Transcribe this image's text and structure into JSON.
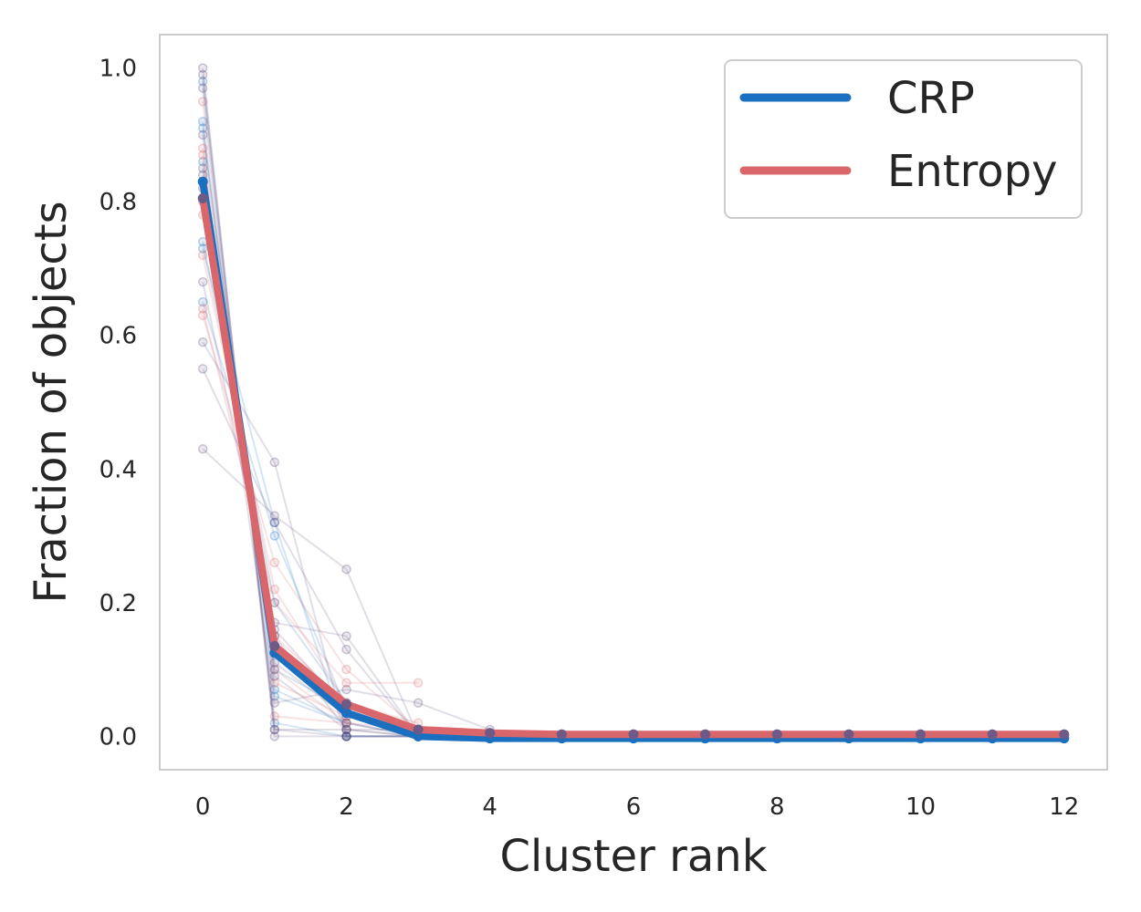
{
  "chart_data": {
    "type": "line",
    "title": "",
    "xlabel": "Cluster rank",
    "ylabel": "Fraction of objects",
    "xlim": [
      -0.6,
      12.6
    ],
    "ylim": [
      -0.05,
      1.05
    ],
    "xticks": [
      0,
      2,
      4,
      6,
      8,
      10,
      12
    ],
    "yticks": [
      0.0,
      0.2,
      0.4,
      0.6,
      0.8,
      1.0
    ],
    "xtick_labels": [
      "0",
      "2",
      "4",
      "6",
      "8",
      "10",
      "12"
    ],
    "ytick_labels": [
      "0.0",
      "0.2",
      "0.4",
      "0.6",
      "0.8",
      "1.0"
    ],
    "grid": false,
    "legend_position": "top-right",
    "x": [
      0,
      1,
      2,
      3,
      4,
      5,
      6,
      7,
      8,
      9,
      10,
      11,
      12
    ],
    "series": [
      {
        "name": "CRP",
        "color": "#1a6fbf",
        "values": [
          0.83,
          0.125,
          0.035,
          0.0,
          -0.003,
          -0.003,
          -0.003,
          -0.003,
          -0.003,
          -0.003,
          -0.003,
          -0.003,
          -0.003
        ]
      },
      {
        "name": "Entropy",
        "color": "#d9666a",
        "values": [
          0.805,
          0.135,
          0.048,
          0.01,
          0.005,
          0.003,
          0.003,
          0.003,
          0.003,
          0.003,
          0.003,
          0.003,
          0.003
        ]
      }
    ],
    "individual_runs": [
      {
        "color": "#1a6fbf",
        "values": [
          0.92,
          0.06,
          0.02,
          0.0
        ]
      },
      {
        "color": "#1a6fbf",
        "values": [
          0.74,
          0.2,
          0.05,
          0.01
        ]
      },
      {
        "color": "#1a6fbf",
        "values": [
          0.65,
          0.3,
          0.04,
          0.01
        ]
      },
      {
        "color": "#1a6fbf",
        "values": [
          0.98,
          0.02,
          0.0,
          0.0
        ]
      },
      {
        "color": "#1a6fbf",
        "values": [
          0.86,
          0.1,
          0.04,
          0.0
        ]
      },
      {
        "color": "#1a6fbf",
        "values": [
          0.73,
          0.32,
          0.0,
          0.0
        ]
      },
      {
        "color": "#1a6fbf",
        "values": [
          0.91,
          0.07,
          0.02,
          0.0
        ]
      },
      {
        "color": "#d9666a",
        "values": [
          0.72,
          0.22,
          0.05,
          0.01
        ]
      },
      {
        "color": "#d9666a",
        "values": [
          0.63,
          0.26,
          0.1,
          0.01
        ]
      },
      {
        "color": "#d9666a",
        "values": [
          0.88,
          0.08,
          0.03,
          0.01
        ]
      },
      {
        "color": "#d9666a",
        "values": [
          0.64,
          0.2,
          0.08,
          0.08
        ]
      },
      {
        "color": "#d9666a",
        "values": [
          0.95,
          0.03,
          0.02,
          0.0
        ]
      },
      {
        "color": "#d9666a",
        "values": [
          0.78,
          0.15,
          0.05,
          0.02
        ]
      },
      {
        "color": "#d9666a",
        "values": [
          0.87,
          0.1,
          0.02,
          0.01
        ]
      },
      {
        "color": "#5c4a7a",
        "values": [
          1.0,
          0.0,
          0.0,
          0.0
        ]
      },
      {
        "color": "#5c4a7a",
        "values": [
          0.55,
          0.32,
          0.13,
          0.0
        ]
      },
      {
        "color": "#5c4a7a",
        "values": [
          0.43,
          0.33,
          0.25,
          0.0
        ]
      },
      {
        "color": "#5c4a7a",
        "values": [
          0.68,
          0.17,
          0.15,
          0.0
        ]
      },
      {
        "color": "#5c4a7a",
        "values": [
          0.8,
          0.16,
          0.04,
          0.0
        ]
      },
      {
        "color": "#5c4a7a",
        "values": [
          0.97,
          0.01,
          0.01,
          0.01
        ]
      },
      {
        "color": "#5c4a7a",
        "values": [
          0.9,
          0.09,
          0.01,
          0.0
        ]
      },
      {
        "color": "#5c4a7a",
        "values": [
          0.85,
          0.11,
          0.03,
          0.01
        ]
      },
      {
        "color": "#5c4a7a",
        "values": [
          0.59,
          0.41,
          0.0,
          0.0
        ]
      },
      {
        "color": "#5c4a7a",
        "values": [
          0.84,
          0.15,
          0.01,
          0.0
        ]
      },
      {
        "color": "#5c4a7a",
        "values": [
          0.82,
          0.05,
          0.07,
          0.05,
          0.01
        ]
      },
      {
        "color": "#5c4a7a",
        "values": [
          0.99,
          0.01,
          0.0,
          0.0
        ]
      }
    ]
  }
}
